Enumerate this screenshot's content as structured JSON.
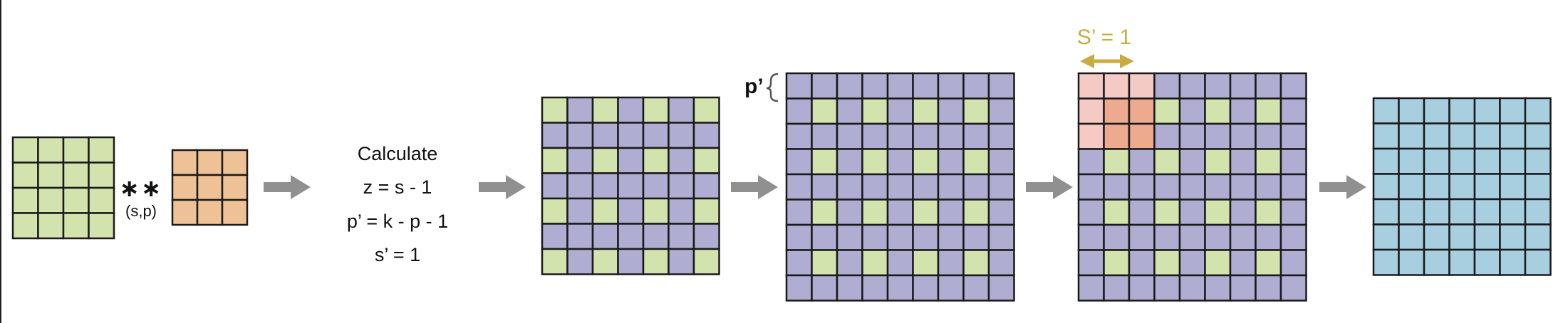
{
  "colors": {
    "green": "#d3e3ad",
    "orange": "#eec197",
    "purple": "#afadd1",
    "pink_light": "#f5c9c4",
    "pink_dark": "#eeaa8f",
    "blue": "#a7cfe0",
    "stroke": "#1a1a1a",
    "arrow": "#909090",
    "gold": "#c9ab3f"
  },
  "operator": {
    "symbol": "∗∗",
    "params": "(s,p)"
  },
  "calculate": {
    "title": "Calculate",
    "lines": [
      "z = s - 1",
      "p’ = k - p - 1",
      "s’ = 1"
    ]
  },
  "padding_label": "p’",
  "stride_label": "S’ = 1",
  "grids": {
    "input": {
      "rows": 4,
      "cols": 4
    },
    "kernel": {
      "rows": 3,
      "cols": 3
    },
    "stride_inserted": {
      "rows": 7,
      "cols": 7
    },
    "padded": {
      "rows": 9,
      "cols": 9
    },
    "convolving": {
      "rows": 9,
      "cols": 9
    },
    "output": {
      "rows": 7,
      "cols": 7
    }
  }
}
